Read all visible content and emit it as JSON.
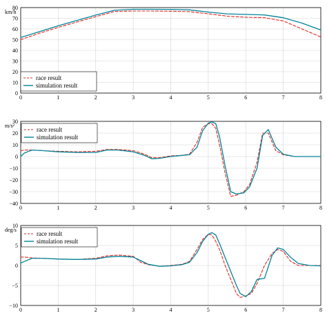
{
  "chart_data": [
    {
      "type": "line",
      "title": "",
      "xlabel": "",
      "ylabel": "",
      "unit_label": "km/h",
      "xlim": [
        0,
        8
      ],
      "ylim": [
        0,
        80
      ],
      "xticks": [
        "0",
        "1",
        "2",
        "3",
        "4",
        "5",
        "6",
        "7",
        "8"
      ],
      "yticks": [
        "0",
        "10",
        "20",
        "30",
        "40",
        "50",
        "60",
        "70",
        "80"
      ],
      "yticks_values": [
        0,
        10,
        20,
        30,
        40,
        50,
        60,
        70,
        80
      ],
      "grid": true,
      "legend_position": "bottom-left",
      "colors": {
        "race": "#e0281e",
        "simulation": "#00839a"
      },
      "series": [
        {
          "name": "race result",
          "style": "dashed",
          "x": [
            0,
            0.5,
            1,
            1.5,
            2,
            2.5,
            3,
            3.5,
            4,
            4.5,
            5,
            5.5,
            6,
            6.5,
            7,
            7.5,
            8
          ],
          "y": [
            50,
            56,
            61.5,
            66.5,
            71.5,
            76.3,
            76.8,
            76.8,
            76.6,
            76.2,
            74.2,
            72,
            71,
            70.5,
            67.5,
            60,
            52.5
          ]
        },
        {
          "name": "simulation result",
          "style": "solid",
          "x": [
            0,
            0.5,
            1,
            1.5,
            2,
            2.5,
            3,
            3.5,
            4,
            4.5,
            5,
            5.5,
            6,
            6.5,
            7,
            7.5,
            8
          ],
          "y": [
            52,
            57.5,
            63,
            68,
            73,
            77.5,
            78.4,
            78.4,
            78.3,
            77.9,
            75.8,
            74.1,
            73.6,
            73.1,
            70.5,
            65.5,
            59
          ]
        }
      ]
    },
    {
      "type": "line",
      "title": "",
      "xlabel": "",
      "ylabel": "",
      "unit_label": "m/s²",
      "xlim": [
        0,
        8
      ],
      "ylim": [
        -40,
        30
      ],
      "xticks": [
        "0",
        "1",
        "2",
        "3",
        "4",
        "5",
        "6",
        "7",
        "8"
      ],
      "yticks": [
        "−40",
        "−30",
        "−20",
        "−10",
        "0",
        "10",
        "20",
        "30"
      ],
      "yticks_values": [
        -40,
        -30,
        -20,
        -10,
        0,
        10,
        20,
        30
      ],
      "grid": true,
      "legend_position": "top-left",
      "colors": {
        "race": "#e0281e",
        "simulation": "#00839a"
      },
      "series": [
        {
          "name": "race result",
          "style": "dashed",
          "x": [
            0,
            0.1,
            0.3,
            0.6,
            1,
            1.5,
            2,
            2.3,
            2.6,
            3,
            3.3,
            3.5,
            3.7,
            4,
            4.3,
            4.5,
            4.7,
            4.85,
            5,
            5.1,
            5.2,
            5.3,
            5.45,
            5.6,
            5.75,
            5.95,
            6.1,
            6.3,
            6.45,
            6.6,
            6.8,
            7,
            7.3,
            7.6,
            8
          ],
          "y": [
            5,
            5.5,
            5.5,
            5,
            4.5,
            4,
            4.5,
            6,
            6,
            5,
            2,
            -1,
            -1,
            0.5,
            1,
            2,
            12,
            25,
            28,
            28,
            24,
            10,
            -14,
            -34,
            -33,
            -30,
            -24,
            -5,
            20,
            20,
            5,
            1.5,
            0,
            0,
            0
          ]
        },
        {
          "name": "simulation result",
          "style": "solid",
          "x": [
            0,
            0.1,
            0.3,
            0.6,
            1,
            1.5,
            2,
            2.3,
            2.6,
            3,
            3.3,
            3.5,
            3.7,
            4,
            4.3,
            4.5,
            4.7,
            4.85,
            5,
            5.1,
            5.2,
            5.3,
            5.45,
            5.6,
            5.75,
            5.95,
            6.1,
            6.3,
            6.45,
            6.6,
            6.8,
            7,
            7.3,
            7.6,
            8
          ],
          "y": [
            0,
            3,
            5.5,
            5,
            4,
            3.5,
            3.5,
            5.5,
            5.5,
            4,
            1,
            -2,
            -1.5,
            0,
            1,
            1.5,
            8,
            22,
            28.5,
            29.5,
            28,
            17,
            -8,
            -30,
            -32,
            -31,
            -26,
            -10,
            18,
            23,
            8,
            2,
            0,
            0,
            0
          ]
        }
      ]
    },
    {
      "type": "line",
      "title": "",
      "xlabel": "",
      "ylabel": "",
      "unit_label": "deg/s",
      "xlim": [
        0,
        8
      ],
      "ylim": [
        -10,
        10
      ],
      "xticks": [
        "0",
        "1",
        "2",
        "3",
        "4",
        "5",
        "6",
        "7",
        "8"
      ],
      "yticks": [
        "−10",
        "−5",
        "0",
        "5",
        "10"
      ],
      "yticks_values": [
        -10,
        -5,
        0,
        5,
        10
      ],
      "grid": true,
      "legend_position": "top-left",
      "colors": {
        "race": "#e0281e",
        "simulation": "#00839a"
      },
      "series": [
        {
          "name": "race result",
          "style": "dashed",
          "x": [
            0,
            0.1,
            0.3,
            0.6,
            1,
            1.5,
            2,
            2.3,
            2.6,
            3,
            3.2,
            3.4,
            3.7,
            4,
            4.3,
            4.5,
            4.7,
            4.85,
            5,
            5.1,
            5.2,
            5.3,
            5.45,
            5.6,
            5.75,
            5.85,
            6,
            6.15,
            6.3,
            6.5,
            6.7,
            6.85,
            7,
            7.2,
            7.4,
            7.7,
            8
          ],
          "y": [
            2.1,
            2.1,
            1.9,
            1.8,
            1.6,
            1.5,
            1.8,
            2.4,
            2.6,
            2.3,
            0.8,
            0.2,
            -0.2,
            0,
            0.3,
            1,
            4,
            6.5,
            7.8,
            7.6,
            6,
            4,
            0,
            -3.5,
            -7,
            -8,
            -7.6,
            -7,
            -4.5,
            0,
            3,
            4,
            3.5,
            1,
            0,
            0,
            0
          ]
        },
        {
          "name": "simulation result",
          "style": "solid",
          "x": [
            0,
            0.1,
            0.3,
            0.6,
            1,
            1.5,
            2,
            2.3,
            2.6,
            3,
            3.2,
            3.4,
            3.7,
            4,
            4.3,
            4.5,
            4.7,
            4.85,
            5,
            5.1,
            5.2,
            5.3,
            5.45,
            5.6,
            5.75,
            5.85,
            6,
            6.15,
            6.3,
            6.5,
            6.7,
            6.85,
            7,
            7.2,
            7.4,
            7.7,
            8
          ],
          "y": [
            0.6,
            1,
            1.8,
            1.8,
            1.6,
            1.5,
            1.6,
            2.1,
            2.3,
            2.1,
            1.2,
            0.3,
            -0.2,
            -0.1,
            0.2,
            0.8,
            3.2,
            6,
            7.8,
            8.2,
            7.6,
            5.5,
            2,
            -1.5,
            -5,
            -7,
            -7.8,
            -6.5,
            -3.5,
            -3.2,
            2.5,
            4.4,
            4,
            2,
            0.5,
            0,
            -0.1
          ]
        }
      ]
    }
  ]
}
